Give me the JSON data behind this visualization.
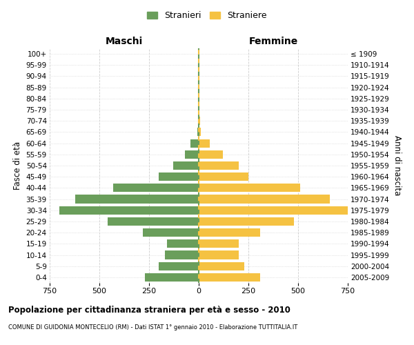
{
  "age_groups": [
    "100+",
    "95-99",
    "90-94",
    "85-89",
    "80-84",
    "75-79",
    "70-74",
    "65-69",
    "60-64",
    "55-59",
    "50-54",
    "45-49",
    "40-44",
    "35-39",
    "30-34",
    "25-29",
    "20-24",
    "15-19",
    "10-14",
    "5-9",
    "0-4"
  ],
  "birth_years": [
    "≤ 1909",
    "1910-1914",
    "1915-1919",
    "1920-1924",
    "1925-1929",
    "1930-1934",
    "1935-1939",
    "1940-1944",
    "1945-1949",
    "1950-1954",
    "1955-1959",
    "1960-1964",
    "1965-1969",
    "1970-1974",
    "1975-1979",
    "1980-1984",
    "1985-1989",
    "1990-1994",
    "1995-1999",
    "2000-2004",
    "2005-2009"
  ],
  "males": [
    0,
    0,
    0,
    0,
    2,
    5,
    5,
    8,
    40,
    70,
    130,
    200,
    430,
    620,
    700,
    460,
    280,
    160,
    170,
    200,
    270
  ],
  "females": [
    0,
    0,
    0,
    0,
    2,
    5,
    8,
    12,
    55,
    120,
    200,
    250,
    510,
    660,
    750,
    480,
    310,
    200,
    200,
    230,
    310
  ],
  "male_color": "#6a9e5b",
  "female_color": "#f5c242",
  "male_label": "Stranieri",
  "female_label": "Straniere",
  "left_title": "Maschi",
  "right_title": "Femmine",
  "left_ylabel": "Fasce di età",
  "right_ylabel": "Anni di nascita",
  "xlim": 750,
  "title": "Popolazione per cittadinanza straniera per età e sesso - 2010",
  "subtitle": "COMUNE DI GUIDONIA MONTECELIO (RM) - Dati ISTAT 1° gennaio 2010 - Elaborazione TUTTITALIA.IT",
  "background_color": "#ffffff",
  "grid_color": "#cccccc"
}
